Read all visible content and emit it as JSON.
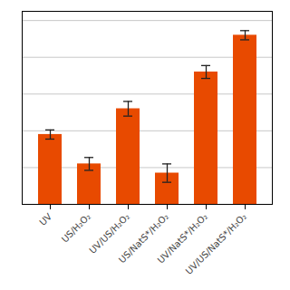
{
  "chart_data": {
    "type": "bar",
    "categories": [
      "UV",
      "US/H₂O₂",
      "UV/US/H₂O₂",
      "US/NatS*/H₂O₂",
      "UV/NatS*/H₂O₂",
      "UV/US/NatS*/H₂O₂"
    ],
    "values": [
      38,
      22,
      52,
      17,
      72,
      92
    ],
    "errors": [
      2.5,
      3.5,
      4.0,
      5.0,
      3.5,
      2.5
    ],
    "color": "#E84A00",
    "ylim": [
      0,
      105
    ],
    "yticks": [
      0,
      20,
      40,
      60,
      80,
      100
    ],
    "grid": true,
    "tick_labels": "x"
  }
}
